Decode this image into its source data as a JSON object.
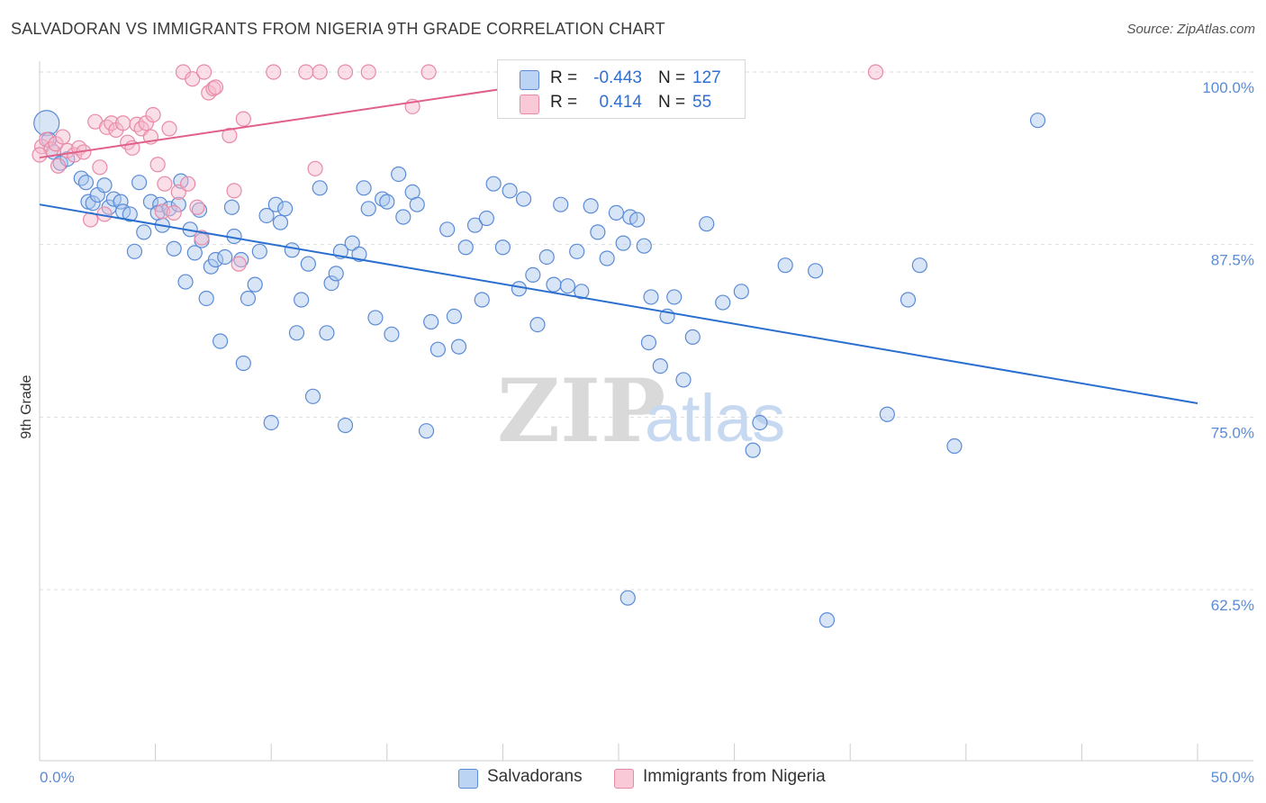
{
  "title": "SALVADORAN VS IMMIGRANTS FROM NIGERIA 9TH GRADE CORRELATION CHART",
  "source": "Source: ZipAtlas.com",
  "watermark": {
    "zip": "ZIP",
    "atlas": "atlas"
  },
  "legend": {
    "series1": {
      "r_label": "R =",
      "r_value": "-0.443",
      "n_label": "N =",
      "n_value": "127"
    },
    "series2": {
      "r_label": "R =",
      "r_value": "0.414",
      "n_label": "N =",
      "n_value": "55"
    }
  },
  "bottom_legend": {
    "series1": "Salvadorans",
    "series2": "Immigrants from Nigeria"
  },
  "colors": {
    "blue_fill": "#a8c6ee",
    "blue_stroke": "#5b8bd6",
    "blue_line": "#2a6fcf",
    "pink_fill": "#f7b8cb",
    "pink_stroke": "#e88aa6",
    "pink_line": "#e0608a",
    "grid": "#dddddd",
    "axis_text": "#5b8bd6"
  },
  "chart_data": {
    "type": "scatter",
    "title": "SALVADORAN VS IMMIGRANTS FROM NIGERIA 9TH GRADE CORRELATION CHART",
    "xlabel": "",
    "ylabel": "9th Grade",
    "xlim": [
      0,
      50
    ],
    "ylim": [
      52,
      100.8
    ],
    "x_tick_labels": [
      "0.0%",
      "50.0%"
    ],
    "y_ticks": [
      62.5,
      75.0,
      87.5,
      100.0
    ],
    "y_tick_labels": [
      "62.5%",
      "75.0%",
      "87.5%",
      "100.0%"
    ],
    "series": [
      {
        "name": "Salvadorans",
        "r": -0.443,
        "n": 127,
        "trend": {
          "x": [
            0,
            50
          ],
          "y": [
            90.4,
            76.0
          ]
        },
        "points": [
          [
            0.3,
            96.3
          ],
          [
            0.4,
            95.1
          ],
          [
            0.6,
            94.2
          ],
          [
            0.9,
            93.4
          ],
          [
            1.2,
            93.7
          ],
          [
            1.8,
            92.3
          ],
          [
            2.0,
            92.0
          ],
          [
            2.1,
            90.6
          ],
          [
            2.3,
            90.5
          ],
          [
            2.5,
            91.1
          ],
          [
            2.8,
            91.8
          ],
          [
            3.0,
            90.2
          ],
          [
            3.2,
            90.8
          ],
          [
            3.5,
            90.6
          ],
          [
            3.6,
            89.9
          ],
          [
            3.9,
            89.7
          ],
          [
            4.1,
            87.0
          ],
          [
            4.3,
            92.0
          ],
          [
            4.5,
            88.4
          ],
          [
            4.8,
            90.6
          ],
          [
            5.2,
            90.4
          ],
          [
            5.1,
            89.8
          ],
          [
            5.3,
            88.9
          ],
          [
            5.6,
            90.1
          ],
          [
            5.8,
            87.2
          ],
          [
            6.0,
            90.4
          ],
          [
            6.1,
            92.1
          ],
          [
            6.3,
            84.8
          ],
          [
            6.5,
            88.6
          ],
          [
            6.7,
            86.9
          ],
          [
            6.9,
            90.0
          ],
          [
            7.0,
            87.8
          ],
          [
            7.2,
            83.6
          ],
          [
            7.4,
            85.9
          ],
          [
            7.6,
            86.4
          ],
          [
            7.8,
            80.5
          ],
          [
            8.0,
            86.6
          ],
          [
            8.3,
            90.2
          ],
          [
            8.4,
            88.1
          ],
          [
            8.7,
            86.4
          ],
          [
            8.8,
            78.9
          ],
          [
            9.0,
            83.6
          ],
          [
            9.3,
            84.6
          ],
          [
            9.5,
            87.0
          ],
          [
            9.8,
            89.6
          ],
          [
            10.0,
            74.6
          ],
          [
            10.2,
            90.4
          ],
          [
            10.4,
            89.1
          ],
          [
            10.6,
            90.1
          ],
          [
            10.9,
            87.1
          ],
          [
            11.1,
            81.1
          ],
          [
            11.3,
            83.5
          ],
          [
            11.6,
            86.1
          ],
          [
            11.8,
            76.5
          ],
          [
            12.1,
            91.6
          ],
          [
            12.4,
            81.1
          ],
          [
            12.6,
            84.7
          ],
          [
            12.8,
            85.4
          ],
          [
            13.0,
            87.0
          ],
          [
            13.2,
            74.4
          ],
          [
            13.5,
            87.6
          ],
          [
            13.8,
            86.8
          ],
          [
            14.0,
            91.6
          ],
          [
            14.2,
            90.1
          ],
          [
            14.5,
            82.2
          ],
          [
            14.8,
            90.8
          ],
          [
            15.0,
            90.6
          ],
          [
            15.2,
            81.0
          ],
          [
            15.5,
            92.6
          ],
          [
            15.7,
            89.5
          ],
          [
            16.1,
            91.3
          ],
          [
            16.3,
            90.4
          ],
          [
            16.7,
            74.0
          ],
          [
            16.9,
            81.9
          ],
          [
            17.2,
            79.9
          ],
          [
            17.6,
            88.6
          ],
          [
            17.9,
            82.3
          ],
          [
            18.1,
            80.1
          ],
          [
            18.4,
            87.3
          ],
          [
            18.8,
            88.9
          ],
          [
            19.1,
            83.5
          ],
          [
            19.3,
            89.4
          ],
          [
            19.6,
            91.9
          ],
          [
            20.0,
            87.3
          ],
          [
            20.3,
            91.4
          ],
          [
            20.7,
            84.3
          ],
          [
            20.9,
            90.8
          ],
          [
            21.3,
            85.3
          ],
          [
            21.5,
            81.7
          ],
          [
            21.9,
            86.6
          ],
          [
            22.2,
            84.6
          ],
          [
            22.5,
            90.4
          ],
          [
            22.8,
            84.5
          ],
          [
            23.2,
            87.0
          ],
          [
            23.4,
            84.1
          ],
          [
            23.8,
            90.3
          ],
          [
            24.1,
            88.4
          ],
          [
            24.5,
            86.5
          ],
          [
            24.9,
            89.8
          ],
          [
            25.2,
            87.6
          ],
          [
            25.5,
            89.5
          ],
          [
            25.8,
            89.3
          ],
          [
            26.1,
            87.4
          ],
          [
            25.4,
            61.9
          ],
          [
            25.9,
            100.0
          ],
          [
            26.4,
            83.7
          ],
          [
            26.3,
            80.4
          ],
          [
            26.8,
            78.7
          ],
          [
            27.1,
            82.3
          ],
          [
            27.4,
            83.7
          ],
          [
            27.8,
            77.7
          ],
          [
            28.2,
            80.8
          ],
          [
            28.8,
            89.0
          ],
          [
            29.5,
            83.3
          ],
          [
            30.3,
            84.1
          ],
          [
            31.1,
            74.6
          ],
          [
            30.8,
            72.6
          ],
          [
            32.2,
            86.0
          ],
          [
            33.5,
            85.6
          ],
          [
            34.0,
            60.3
          ],
          [
            36.6,
            75.2
          ],
          [
            37.5,
            83.5
          ],
          [
            38.0,
            86.0
          ],
          [
            39.5,
            72.9
          ],
          [
            43.1,
            96.5
          ]
        ]
      },
      {
        "name": "Immigrants from Nigeria",
        "r": 0.414,
        "n": 55,
        "trend": {
          "x": [
            0,
            24.5
          ],
          "y": [
            93.8,
            99.9
          ]
        },
        "points": [
          [
            0.1,
            94.6
          ],
          [
            0.3,
            95.1
          ],
          [
            0.5,
            94.4
          ],
          [
            0.7,
            94.8
          ],
          [
            0.8,
            93.2
          ],
          [
            1.0,
            95.3
          ],
          [
            1.2,
            94.3
          ],
          [
            1.5,
            94.0
          ],
          [
            1.7,
            94.5
          ],
          [
            1.9,
            94.2
          ],
          [
            2.2,
            89.3
          ],
          [
            2.4,
            96.4
          ],
          [
            2.6,
            93.1
          ],
          [
            2.9,
            96.0
          ],
          [
            2.8,
            89.7
          ],
          [
            3.1,
            96.3
          ],
          [
            3.3,
            95.8
          ],
          [
            3.6,
            96.3
          ],
          [
            3.8,
            94.9
          ],
          [
            4.0,
            94.5
          ],
          [
            4.2,
            96.2
          ],
          [
            4.4,
            95.9
          ],
          [
            4.6,
            96.3
          ],
          [
            4.8,
            95.3
          ],
          [
            4.9,
            96.9
          ],
          [
            5.1,
            93.3
          ],
          [
            5.3,
            89.9
          ],
          [
            5.4,
            91.9
          ],
          [
            5.6,
            95.9
          ],
          [
            5.8,
            89.8
          ],
          [
            6.0,
            91.3
          ],
          [
            6.2,
            100.0
          ],
          [
            6.4,
            91.9
          ],
          [
            6.6,
            99.5
          ],
          [
            6.8,
            90.2
          ],
          [
            7.0,
            88.0
          ],
          [
            7.1,
            100.0
          ],
          [
            7.3,
            98.5
          ],
          [
            7.5,
            98.8
          ],
          [
            7.6,
            98.9
          ],
          [
            8.2,
            95.4
          ],
          [
            8.4,
            91.4
          ],
          [
            8.6,
            86.1
          ],
          [
            8.8,
            96.6
          ],
          [
            10.1,
            100.0
          ],
          [
            11.5,
            100.0
          ],
          [
            12.1,
            100.0
          ],
          [
            11.9,
            93.0
          ],
          [
            13.2,
            100.0
          ],
          [
            14.2,
            100.0
          ],
          [
            16.1,
            97.5
          ],
          [
            16.8,
            100.0
          ],
          [
            24.3,
            99.6
          ],
          [
            36.1,
            100.0
          ],
          [
            0.0,
            94.0
          ]
        ]
      }
    ]
  }
}
